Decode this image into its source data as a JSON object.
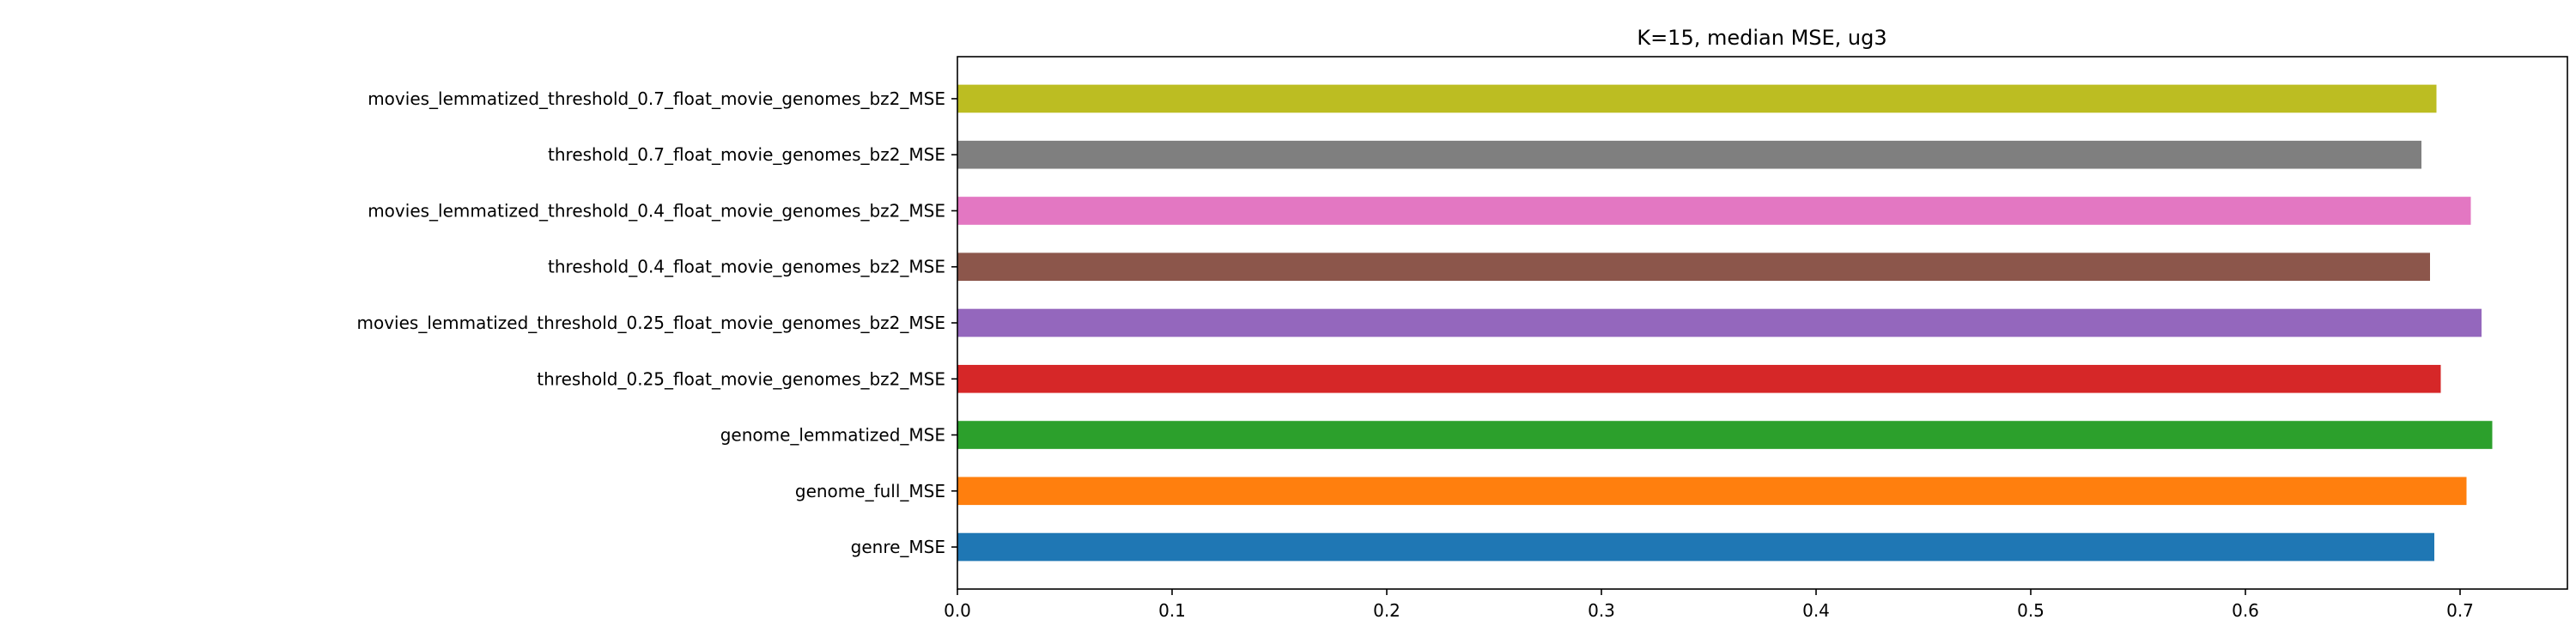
{
  "chart_data": {
    "type": "bar",
    "orientation": "horizontal",
    "title": "K=15, median MSE, ug3",
    "xlabel": "",
    "ylabel": "",
    "xlim": [
      0.0,
      0.75
    ],
    "x_ticks": [
      0.0,
      0.1,
      0.2,
      0.3,
      0.4,
      0.5,
      0.6,
      0.7
    ],
    "x_tick_labels": [
      "0.0",
      "0.1",
      "0.2",
      "0.3",
      "0.4",
      "0.5",
      "0.6",
      "0.7"
    ],
    "grid": false,
    "legend": "none",
    "categories": [
      "genre_MSE",
      "genome_full_MSE",
      "genome_lemmatized_MSE",
      "threshold_0.25_float_movie_genomes_bz2_MSE",
      "movies_lemmatized_threshold_0.25_float_movie_genomes_bz2_MSE",
      "threshold_0.4_float_movie_genomes_bz2_MSE",
      "movies_lemmatized_threshold_0.4_float_movie_genomes_bz2_MSE",
      "threshold_0.7_float_movie_genomes_bz2_MSE",
      "movies_lemmatized_threshold_0.7_float_movie_genomes_bz2_MSE"
    ],
    "values": [
      0.688,
      0.703,
      0.715,
      0.691,
      0.71,
      0.686,
      0.705,
      0.682,
      0.689
    ],
    "colors": [
      "#1f77b4",
      "#ff7f0e",
      "#2ca02c",
      "#d62728",
      "#9467bd",
      "#8c564b",
      "#e377c2",
      "#7f7f7f",
      "#bcbd22"
    ]
  }
}
